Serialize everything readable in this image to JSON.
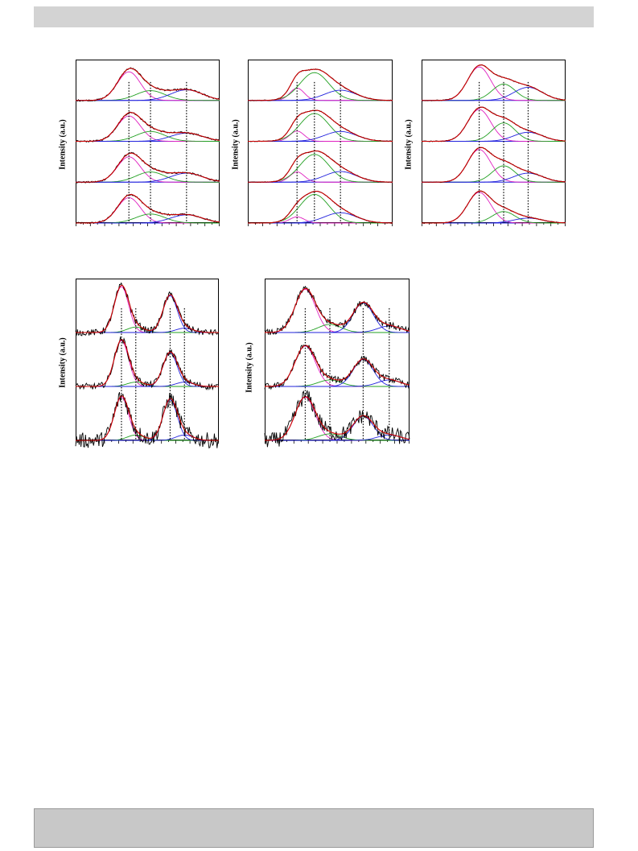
{
  "page": {
    "header_color": "#d3d3d3",
    "footer_color": "#c8c8c8"
  },
  "colors": {
    "data": "#000000",
    "fit": "#cc0000",
    "c1": "#e020c0",
    "c2": "#22a022",
    "c3": "#2222dd",
    "baseline": "#2222dd"
  },
  "chart_data": [
    {
      "type": "line",
      "ylabel": "Intensity (a.u.)",
      "xlim": [
        0,
        100
      ],
      "ylim": [
        0,
        4
      ],
      "grid": false,
      "vlines": [
        37,
        52,
        77
      ],
      "stack_offsets": [
        0,
        1,
        2,
        3
      ],
      "noise": 0.02,
      "components": [
        {
          "name": "",
          "center": 37,
          "width": 8,
          "amplitudes": [
            0.62,
            0.62,
            0.62,
            0.7
          ]
        },
        {
          "name": "",
          "center": 52,
          "width": 10,
          "amplitudes": [
            0.22,
            0.25,
            0.24,
            0.24
          ]
        },
        {
          "name": "",
          "center": 77,
          "width": 11,
          "amplitudes": [
            0.2,
            0.22,
            0.2,
            0.26
          ]
        }
      ]
    },
    {
      "type": "line",
      "ylabel": "Intensity (a.u.)",
      "xlim": [
        0,
        100
      ],
      "ylim": [
        0,
        4
      ],
      "grid": false,
      "vlines": [
        34,
        46,
        64
      ],
      "stack_offsets": [
        0,
        1,
        2,
        3
      ],
      "noise": 0.01,
      "components": [
        {
          "name": "",
          "center": 34,
          "width": 5,
          "amplitudes": [
            0.15,
            0.25,
            0.25,
            0.3
          ]
        },
        {
          "name": "",
          "center": 46,
          "width": 10,
          "amplitudes": [
            0.7,
            0.68,
            0.68,
            0.68
          ]
        },
        {
          "name": "",
          "center": 64,
          "width": 11,
          "amplitudes": [
            0.25,
            0.26,
            0.24,
            0.25
          ]
        }
      ]
    },
    {
      "type": "line",
      "ylabel": "Intensity (a.u.)",
      "xlim": [
        0,
        100
      ],
      "ylim": [
        0,
        4
      ],
      "grid": false,
      "vlines": [
        40,
        57,
        74
      ],
      "stack_offsets": [
        0,
        1,
        2,
        3
      ],
      "noise": 0.01,
      "components": [
        {
          "name": "",
          "center": 40,
          "width": 8,
          "amplitudes": [
            0.75,
            0.8,
            0.78,
            0.82
          ]
        },
        {
          "name": "",
          "center": 57,
          "width": 8,
          "amplitudes": [
            0.28,
            0.4,
            0.45,
            0.4
          ]
        },
        {
          "name": "",
          "center": 74,
          "width": 10,
          "amplitudes": [
            0.12,
            0.22,
            0.22,
            0.32
          ]
        }
      ]
    },
    {
      "type": "line",
      "ylabel": "Intensity (a.u.)",
      "xlim": [
        0,
        100
      ],
      "ylim": [
        0,
        3
      ],
      "grid": false,
      "vlines": [
        32,
        42,
        66,
        76
      ],
      "stack_offsets": [
        0,
        1,
        2
      ],
      "noise": 0.06,
      "components": [
        {
          "name": "",
          "center": 32,
          "width": 5,
          "amplitudes": [
            0.8,
            0.85,
            0.85
          ]
        },
        {
          "name": "",
          "center": 42,
          "width": 6,
          "amplitudes": [
            0.1,
            0.08,
            0.1
          ]
        },
        {
          "name": "",
          "center": 66,
          "width": 5,
          "amplitudes": [
            0.75,
            0.62,
            0.68
          ]
        },
        {
          "name": "",
          "center": 76,
          "width": 6,
          "amplitudes": [
            0.1,
            0.08,
            0.08
          ]
        }
      ]
    },
    {
      "type": "line",
      "ylabel": "Intensity (a.u.)",
      "xlim": [
        0,
        100
      ],
      "ylim": [
        0,
        3
      ],
      "grid": false,
      "vlines": [
        28,
        45,
        68,
        86
      ],
      "stack_offsets": [
        0,
        1,
        2
      ],
      "noise": 0.06,
      "components": [
        {
          "name": "",
          "center": 28,
          "width": 7,
          "amplitudes": [
            0.8,
            0.75,
            0.8
          ]
        },
        {
          "name": "",
          "center": 45,
          "width": 8,
          "amplitudes": [
            0.12,
            0.12,
            0.15
          ]
        },
        {
          "name": "",
          "center": 68,
          "width": 7,
          "amplitudes": [
            0.45,
            0.5,
            0.55
          ]
        },
        {
          "name": "",
          "center": 86,
          "width": 8,
          "amplitudes": [
            0.1,
            0.12,
            0.12
          ]
        }
      ]
    }
  ]
}
